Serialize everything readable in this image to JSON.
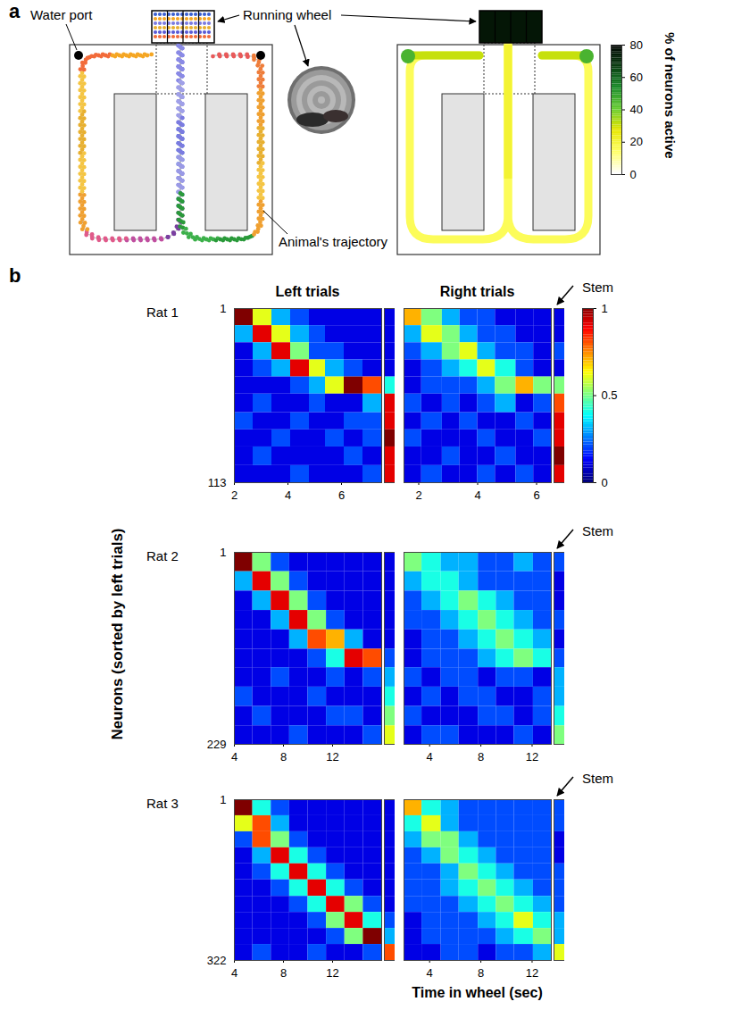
{
  "chart_data": [
    {
      "type": "diagram",
      "letter": "a",
      "annotations": {
        "water_port": "Water port",
        "running_wheel": "Running wheel",
        "trajectory": "Animal's trajectory"
      },
      "trajectory": {
        "left_loop_colors": [
          "#5b5bd6",
          "#7b7be0",
          "#3a6fd8",
          "#6a6ae0",
          "#7a3fa0",
          "#c04fa0",
          "#e05a8a",
          "#f0a030",
          "#f5c542",
          "#e8b030",
          "#f5c542",
          "#f26b3a",
          "#f5a623"
        ],
        "right_loop_colors": [
          "#8a8ae6",
          "#a0a0e8",
          "#7b7be0",
          "#9a9ae6",
          "#2a9a3a",
          "#3cb04a",
          "#2a9a3a",
          "#f0a030",
          "#f5c542",
          "#e8b030",
          "#f0a030",
          "#ef7d3a",
          "#e85a5a"
        ],
        "wheel_colors": [
          "#3a5fd0",
          "#f5a623",
          "#7b7be0",
          "#e8b030",
          "#5b5bd6",
          "#f26b3a"
        ]
      },
      "activity_map": {
        "label": "% of neurons active",
        "lim": [
          0,
          80
        ],
        "ticks": [
          0,
          20,
          40,
          60,
          80
        ],
        "wheel": 75,
        "water_ports": 45,
        "top_corridor": 30,
        "stem": 20,
        "arms": 15
      }
    },
    {
      "type": "heatmap",
      "letter": "b",
      "column_titles": [
        "Left trials",
        "Right trials"
      ],
      "ylabel": "Neurons (sorted by left trials)",
      "xlabel": "Time in wheel (sec)",
      "colorbar": {
        "lim": [
          0,
          1
        ],
        "ticks": [
          0,
          0.5,
          1
        ]
      },
      "rats": [
        {
          "name": "Rat 1",
          "stem_label": "Stem",
          "ylim": [
            1,
            113
          ],
          "yticks": [
            1,
            113
          ],
          "neuron_edges": [
            1,
            12,
            23,
            34,
            45,
            56,
            68,
            79,
            90,
            102,
            113
          ],
          "left": {
            "xlim": [
              2,
              7.5
            ],
            "xticks": [
              2,
              4,
              6
            ],
            "time_edges": [
              2,
              2.7,
              3.4,
              4.1,
              4.8,
              5.4,
              6.1,
              6.8,
              7.5
            ],
            "values": [
              [
                1.0,
                0.6,
                0.3,
                0.2,
                0.1,
                0.1,
                0.1,
                0.1
              ],
              [
                0.3,
                0.9,
                0.6,
                0.3,
                0.2,
                0.1,
                0.1,
                0.1
              ],
              [
                0.1,
                0.3,
                0.9,
                0.5,
                0.2,
                0.2,
                0.1,
                0.1
              ],
              [
                0.1,
                0.2,
                0.3,
                0.9,
                0.6,
                0.3,
                0.2,
                0.1
              ],
              [
                0.1,
                0.1,
                0.1,
                0.2,
                0.3,
                0.6,
                1.0,
                0.8
              ],
              [
                0.1,
                0.2,
                0.1,
                0.1,
                0.2,
                0.1,
                0.1,
                0.3
              ],
              [
                0.2,
                0.1,
                0.1,
                0.2,
                0.1,
                0.1,
                0.2,
                0.2
              ],
              [
                0.1,
                0.1,
                0.2,
                0.1,
                0.1,
                0.2,
                0.1,
                0.2
              ],
              [
                0.1,
                0.2,
                0.1,
                0.1,
                0.1,
                0.1,
                0.2,
                0.1
              ],
              [
                0.1,
                0.1,
                0.1,
                0.2,
                0.1,
                0.1,
                0.1,
                0.2
              ]
            ],
            "stem": [
              0.1,
              0.1,
              0.1,
              0.1,
              0.4,
              0.9,
              0.9,
              1.0,
              0.9,
              0.9
            ]
          },
          "right": {
            "xlim": [
              1.5,
              6.5
            ],
            "xticks": [
              2,
              4,
              6
            ],
            "time_edges": [
              1.5,
              2.1,
              2.8,
              3.4,
              4,
              4.6,
              5.3,
              5.9,
              6.5
            ],
            "values": [
              [
                0.7,
                0.5,
                0.3,
                0.2,
                0.2,
                0.1,
                0.1,
                0.1
              ],
              [
                0.3,
                0.6,
                0.5,
                0.3,
                0.2,
                0.2,
                0.1,
                0.1
              ],
              [
                0.2,
                0.3,
                0.5,
                0.6,
                0.3,
                0.2,
                0.2,
                0.1
              ],
              [
                0.1,
                0.2,
                0.3,
                0.4,
                0.6,
                0.4,
                0.2,
                0.1
              ],
              [
                0.1,
                0.2,
                0.2,
                0.2,
                0.3,
                0.5,
                0.7,
                0.5
              ],
              [
                0.2,
                0.1,
                0.2,
                0.1,
                0.2,
                0.3,
                0.1,
                0.2
              ],
              [
                0.1,
                0.2,
                0.1,
                0.2,
                0.1,
                0.1,
                0.2,
                0.1
              ],
              [
                0.2,
                0.1,
                0.1,
                0.1,
                0.2,
                0.1,
                0.1,
                0.2
              ],
              [
                0.1,
                0.1,
                0.2,
                0.1,
                0.1,
                0.2,
                0.1,
                0.1
              ],
              [
                0.1,
                0.2,
                0.1,
                0.1,
                0.2,
                0.1,
                0.2,
                0.1
              ]
            ],
            "stem": [
              0.1,
              0.1,
              0.2,
              0.1,
              0.5,
              0.8,
              0.9,
              0.9,
              1.0,
              0.9
            ]
          }
        },
        {
          "name": "Rat 2",
          "stem_label": "Stem",
          "ylim": [
            1,
            229
          ],
          "yticks": [
            1,
            229
          ],
          "neuron_edges": [
            1,
            24,
            47,
            70,
            93,
            116,
            138,
            161,
            184,
            207,
            229
          ],
          "left": {
            "xlim": [
              4,
              16
            ],
            "xticks": [
              4,
              8,
              12
            ],
            "time_edges": [
              4,
              5.5,
              7,
              8.5,
              10,
              11.5,
              13,
              14.5,
              16
            ],
            "values": [
              [
                1.0,
                0.5,
                0.2,
                0.1,
                0.1,
                0.1,
                0.1,
                0.1
              ],
              [
                0.3,
                0.9,
                0.5,
                0.2,
                0.1,
                0.1,
                0.1,
                0.1
              ],
              [
                0.1,
                0.3,
                0.9,
                0.5,
                0.2,
                0.1,
                0.1,
                0.1
              ],
              [
                0.1,
                0.1,
                0.3,
                0.9,
                0.5,
                0.2,
                0.1,
                0.1
              ],
              [
                0.1,
                0.1,
                0.1,
                0.3,
                0.8,
                0.7,
                0.3,
                0.1
              ],
              [
                0.1,
                0.1,
                0.1,
                0.1,
                0.2,
                0.4,
                0.9,
                0.8
              ],
              [
                0.1,
                0.1,
                0.2,
                0.1,
                0.1,
                0.2,
                0.1,
                0.2
              ],
              [
                0.2,
                0.1,
                0.1,
                0.1,
                0.2,
                0.1,
                0.1,
                0.1
              ],
              [
                0.1,
                0.2,
                0.1,
                0.1,
                0.1,
                0.2,
                0.2,
                0.1
              ],
              [
                0.1,
                0.1,
                0.1,
                0.2,
                0.1,
                0.1,
                0.1,
                0.2
              ]
            ],
            "stem": [
              0.1,
              0.1,
              0.1,
              0.1,
              0.1,
              0.2,
              0.3,
              0.4,
              0.5,
              0.6
            ]
          },
          "right": {
            "xlim": [
              2,
              13.5
            ],
            "xticks": [
              4,
              8,
              12
            ],
            "time_edges": [
              2,
              3.4,
              4.9,
              6.3,
              7.8,
              9.2,
              10.6,
              12.1,
              13.5
            ],
            "values": [
              [
                0.5,
                0.4,
                0.3,
                0.3,
                0.2,
                0.2,
                0.3,
                0.2
              ],
              [
                0.3,
                0.4,
                0.4,
                0.3,
                0.2,
                0.2,
                0.2,
                0.2
              ],
              [
                0.2,
                0.3,
                0.4,
                0.5,
                0.4,
                0.3,
                0.2,
                0.2
              ],
              [
                0.2,
                0.2,
                0.3,
                0.4,
                0.5,
                0.4,
                0.3,
                0.2
              ],
              [
                0.1,
                0.2,
                0.2,
                0.3,
                0.4,
                0.5,
                0.4,
                0.3
              ],
              [
                0.1,
                0.2,
                0.2,
                0.2,
                0.3,
                0.4,
                0.5,
                0.4
              ],
              [
                0.2,
                0.1,
                0.2,
                0.2,
                0.1,
                0.2,
                0.2,
                0.1
              ],
              [
                0.1,
                0.2,
                0.1,
                0.2,
                0.2,
                0.1,
                0.1,
                0.2
              ],
              [
                0.2,
                0.1,
                0.1,
                0.1,
                0.2,
                0.2,
                0.1,
                0.2
              ],
              [
                0.1,
                0.2,
                0.2,
                0.1,
                0.1,
                0.1,
                0.2,
                0.1
              ]
            ],
            "stem": [
              0.2,
              0.1,
              0.1,
              0.2,
              0.1,
              0.2,
              0.3,
              0.3,
              0.4,
              0.5
            ]
          }
        },
        {
          "name": "Rat 3",
          "stem_label": "Stem",
          "ylim": [
            1,
            322
          ],
          "yticks": [
            1,
            322
          ],
          "neuron_edges": [
            1,
            33,
            65,
            97,
            129,
            161,
            194,
            226,
            258,
            290,
            322
          ],
          "left": {
            "xlim": [
              4,
              16
            ],
            "xticks": [
              4,
              8,
              12
            ],
            "time_edges": [
              4,
              5.5,
              7,
              8.5,
              10,
              11.5,
              13,
              14.5,
              16
            ],
            "values": [
              [
                1.0,
                0.4,
                0.2,
                0.1,
                0.1,
                0.1,
                0.1,
                0.1
              ],
              [
                0.6,
                0.8,
                0.3,
                0.1,
                0.1,
                0.1,
                0.1,
                0.1
              ],
              [
                0.2,
                0.8,
                0.5,
                0.2,
                0.1,
                0.1,
                0.1,
                0.1
              ],
              [
                0.1,
                0.3,
                0.9,
                0.4,
                0.2,
                0.1,
                0.1,
                0.1
              ],
              [
                0.1,
                0.2,
                0.4,
                0.9,
                0.4,
                0.2,
                0.1,
                0.1
              ],
              [
                0.1,
                0.1,
                0.2,
                0.4,
                0.9,
                0.4,
                0.2,
                0.1
              ],
              [
                0.1,
                0.1,
                0.1,
                0.2,
                0.4,
                0.9,
                0.5,
                0.2
              ],
              [
                0.1,
                0.1,
                0.1,
                0.1,
                0.2,
                0.5,
                0.9,
                0.4
              ],
              [
                0.1,
                0.1,
                0.1,
                0.1,
                0.1,
                0.2,
                0.5,
                1.0
              ],
              [
                0.1,
                0.2,
                0.1,
                0.1,
                0.2,
                0.1,
                0.1,
                0.2
              ]
            ],
            "stem": [
              0.1,
              0.1,
              0.1,
              0.1,
              0.1,
              0.1,
              0.1,
              0.2,
              0.3,
              0.8
            ]
          },
          "right": {
            "xlim": [
              2,
              13.5
            ],
            "xticks": [
              4,
              8,
              12
            ],
            "time_edges": [
              2,
              3.4,
              4.9,
              6.3,
              7.8,
              9.2,
              10.6,
              12.1,
              13.5
            ],
            "values": [
              [
                0.7,
                0.4,
                0.3,
                0.2,
                0.2,
                0.2,
                0.2,
                0.2
              ],
              [
                0.4,
                0.6,
                0.3,
                0.2,
                0.2,
                0.2,
                0.2,
                0.2
              ],
              [
                0.3,
                0.5,
                0.5,
                0.3,
                0.2,
                0.2,
                0.2,
                0.2
              ],
              [
                0.2,
                0.3,
                0.5,
                0.4,
                0.3,
                0.2,
                0.2,
                0.2
              ],
              [
                0.2,
                0.2,
                0.3,
                0.5,
                0.4,
                0.3,
                0.2,
                0.2
              ],
              [
                0.2,
                0.2,
                0.3,
                0.4,
                0.5,
                0.4,
                0.3,
                0.2
              ],
              [
                0.2,
                0.2,
                0.2,
                0.3,
                0.4,
                0.5,
                0.4,
                0.3
              ],
              [
                0.1,
                0.2,
                0.2,
                0.2,
                0.3,
                0.4,
                0.6,
                0.4
              ],
              [
                0.1,
                0.2,
                0.2,
                0.2,
                0.2,
                0.3,
                0.4,
                0.5
              ],
              [
                0.1,
                0.1,
                0.2,
                0.2,
                0.1,
                0.2,
                0.2,
                0.3
              ]
            ],
            "stem": [
              0.2,
              0.2,
              0.1,
              0.1,
              0.2,
              0.2,
              0.2,
              0.3,
              0.3,
              0.6
            ]
          }
        }
      ]
    }
  ]
}
